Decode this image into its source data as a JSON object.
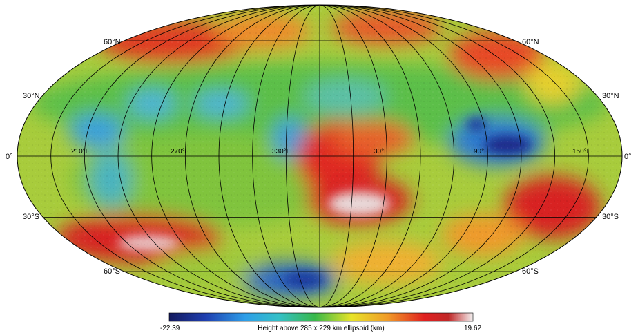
{
  "map": {
    "projection": "Mollweide",
    "latitude_labels": {
      "north60": "60°N",
      "north30": "30°N",
      "equator": "0°",
      "south30": "30°S",
      "south60": "60°S"
    },
    "longitude_labels": [
      "210°E",
      "270°E",
      "330°E",
      "30°E",
      "90°E",
      "150°E"
    ],
    "colors": {
      "lowest": "#1a237e",
      "low": "#2d8fe0",
      "cyan": "#3fc0d8",
      "mid_low": "#3cb54a",
      "mid": "#d8e030",
      "mid_high": "#f0a030",
      "high": "#d81e1e",
      "highest": "#ffffff",
      "grid": "#000000"
    }
  },
  "colorbar": {
    "min_label": "-22.39",
    "max_label": "19.62",
    "title": "Height above 285 x 229 km ellipsoid (km)",
    "min_value": -22.39,
    "max_value": 19.62
  }
}
